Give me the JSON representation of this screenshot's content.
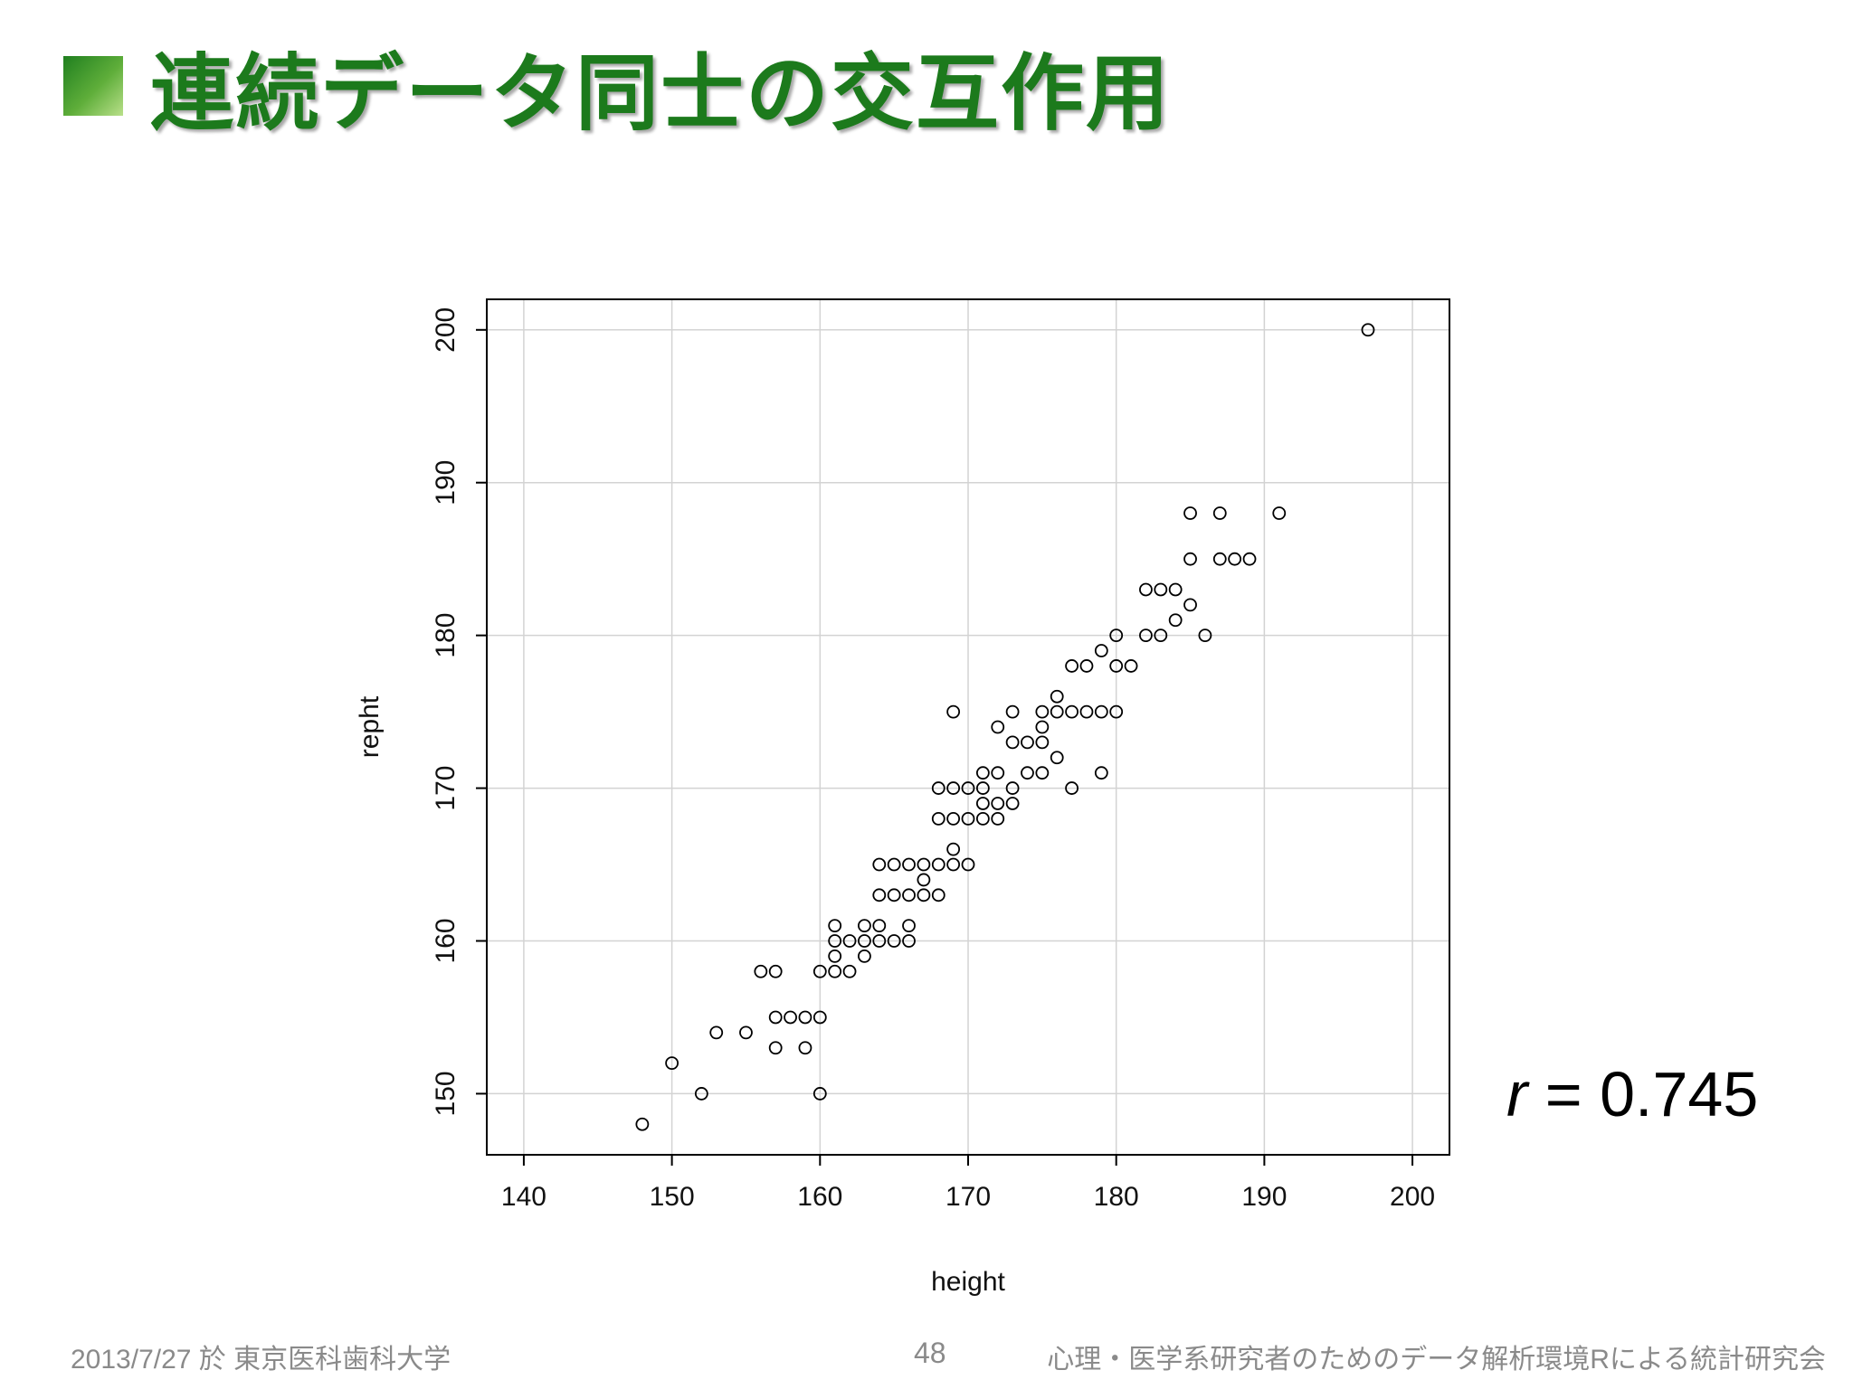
{
  "slide": {
    "title": "連続データ同士の交互作用",
    "annotation": {
      "symbol": "r",
      "equals": "= 0.745"
    },
    "footer": {
      "left": "2013/7/27 於 東京医科歯科大学",
      "page": "48",
      "right": "心理・医学系研究者のためのデータ解析環境Rによる統計研究会"
    },
    "colors": {
      "title": "#1c7a1c",
      "grid": "#d3d3d3",
      "point": "#000000"
    }
  },
  "chart_data": {
    "type": "scatter",
    "xlabel": "height",
    "ylabel": "repht",
    "xlim": [
      137.5,
      202.5
    ],
    "ylim": [
      146,
      202
    ],
    "xticks": [
      140,
      150,
      160,
      170,
      180,
      190,
      200
    ],
    "yticks": [
      150,
      160,
      170,
      180,
      190,
      200
    ],
    "grid": true,
    "points": [
      [
        148,
        148
      ],
      [
        150,
        152
      ],
      [
        152,
        150
      ],
      [
        153,
        154
      ],
      [
        155,
        154
      ],
      [
        156,
        158
      ],
      [
        157,
        158
      ],
      [
        157,
        155
      ],
      [
        157,
        153
      ],
      [
        158,
        155
      ],
      [
        159,
        155
      ],
      [
        159,
        153
      ],
      [
        160,
        155
      ],
      [
        160,
        158
      ],
      [
        160,
        150
      ],
      [
        161,
        161
      ],
      [
        161,
        160
      ],
      [
        161,
        159
      ],
      [
        161,
        158
      ],
      [
        162,
        160
      ],
      [
        162,
        158
      ],
      [
        163,
        161
      ],
      [
        163,
        160
      ],
      [
        163,
        159
      ],
      [
        164,
        165
      ],
      [
        164,
        163
      ],
      [
        164,
        161
      ],
      [
        164,
        160
      ],
      [
        165,
        165
      ],
      [
        165,
        163
      ],
      [
        165,
        160
      ],
      [
        166,
        165
      ],
      [
        166,
        163
      ],
      [
        166,
        161
      ],
      [
        166,
        160
      ],
      [
        167,
        165
      ],
      [
        167,
        164
      ],
      [
        167,
        163
      ],
      [
        168,
        170
      ],
      [
        168,
        168
      ],
      [
        168,
        165
      ],
      [
        168,
        163
      ],
      [
        169,
        175
      ],
      [
        169,
        170
      ],
      [
        169,
        168
      ],
      [
        169,
        166
      ],
      [
        169,
        165
      ],
      [
        170,
        170
      ],
      [
        170,
        168
      ],
      [
        170,
        165
      ],
      [
        171,
        171
      ],
      [
        171,
        170
      ],
      [
        171,
        169
      ],
      [
        171,
        168
      ],
      [
        172,
        174
      ],
      [
        172,
        171
      ],
      [
        172,
        169
      ],
      [
        172,
        168
      ],
      [
        173,
        175
      ],
      [
        173,
        173
      ],
      [
        173,
        170
      ],
      [
        173,
        169
      ],
      [
        174,
        173
      ],
      [
        174,
        171
      ],
      [
        175,
        175
      ],
      [
        175,
        174
      ],
      [
        175,
        173
      ],
      [
        175,
        171
      ],
      [
        176,
        176
      ],
      [
        176,
        175
      ],
      [
        176,
        172
      ],
      [
        177,
        178
      ],
      [
        177,
        175
      ],
      [
        177,
        170
      ],
      [
        178,
        178
      ],
      [
        178,
        175
      ],
      [
        179,
        179
      ],
      [
        179,
        175
      ],
      [
        179,
        171
      ],
      [
        180,
        180
      ],
      [
        180,
        178
      ],
      [
        180,
        175
      ],
      [
        181,
        178
      ],
      [
        182,
        183
      ],
      [
        182,
        180
      ],
      [
        183,
        183
      ],
      [
        183,
        180
      ],
      [
        184,
        183
      ],
      [
        184,
        181
      ],
      [
        185,
        188
      ],
      [
        185,
        185
      ],
      [
        185,
        182
      ],
      [
        186,
        180
      ],
      [
        187,
        188
      ],
      [
        187,
        185
      ],
      [
        188,
        185
      ],
      [
        189,
        185
      ],
      [
        191,
        188
      ],
      [
        197,
        200
      ]
    ]
  }
}
